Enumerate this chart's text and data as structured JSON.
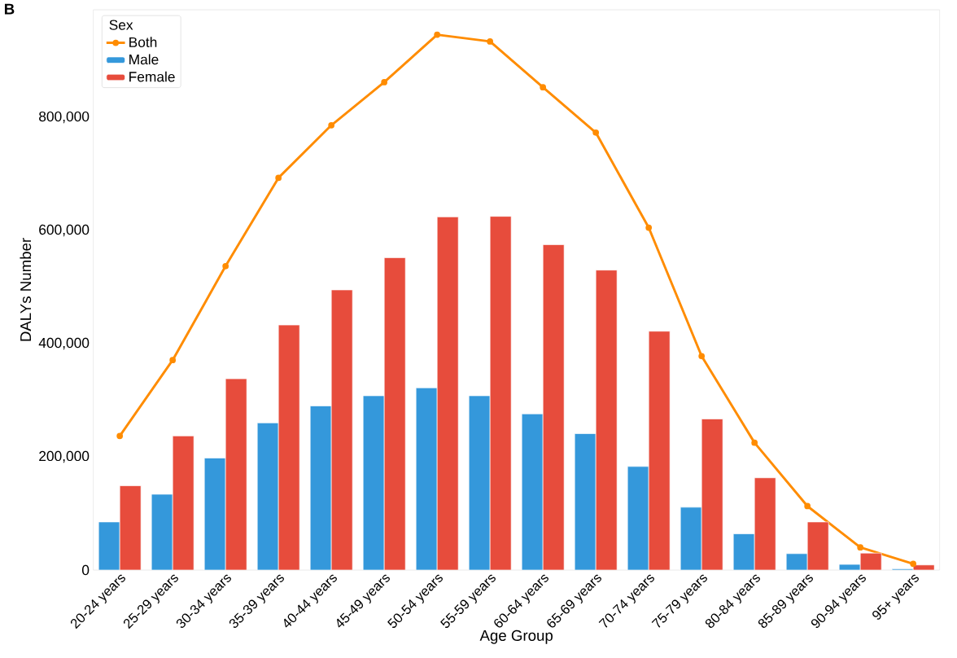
{
  "chart_data": {
    "type": "bar",
    "xlabel": "Age Group",
    "ylabel": "DALYs Number",
    "legend_title": "Sex",
    "legend": "top left",
    "grid": false,
    "annotations": [
      "B"
    ],
    "categories": [
      "20-24 years",
      "25-29 years",
      "30-34 years",
      "35-39 years",
      "40-44 years",
      "45-49 years",
      "50-54 years",
      "55-59 years",
      "60-64 years",
      "65-69 years",
      "70-74 years",
      "75-79 years",
      "80-84 years",
      "85-89 years",
      "90-94 years",
      "95+ years"
    ],
    "series": [
      {
        "name": "Both",
        "type": "line",
        "color": "#ff8c00",
        "marker": "circle",
        "line_style": "solid",
        "values": [
          237000,
          371000,
          537000,
          693000,
          786000,
          862000,
          946000,
          934000,
          853000,
          773000,
          605000,
          378000,
          225000,
          113000,
          40000,
          11000
        ]
      },
      {
        "name": "Male",
        "color": "#3498db",
        "values": [
          85000,
          134000,
          198000,
          260000,
          290000,
          308000,
          322000,
          308000,
          276000,
          241000,
          183000,
          111000,
          64000,
          29000,
          10000,
          2000
        ]
      },
      {
        "name": "Female",
        "color": "#e74c3c",
        "values": [
          149000,
          237000,
          338000,
          433000,
          495000,
          552000,
          624000,
          625000,
          575000,
          530000,
          422000,
          267000,
          163000,
          85000,
          30000,
          9000
        ]
      }
    ],
    "ylim": [
      0,
      990000
    ],
    "yticks": [
      0,
      {
        "value": 200000,
        "label": "200,000"
      },
      {
        "value": 400000,
        "label": "400,000"
      },
      {
        "value": 600000,
        "label": "600,000"
      },
      {
        "value": 800000,
        "label": "800,000"
      }
    ]
  }
}
